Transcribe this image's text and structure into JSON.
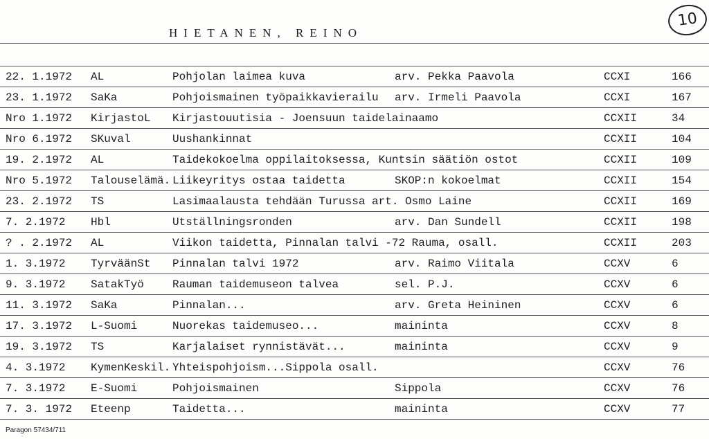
{
  "header": {
    "title": "HIETANEN, REINO",
    "card_number": "10"
  },
  "rows": [
    {
      "date": "22. 1.1972",
      "source": "AL",
      "title": "Pohjolan laimea kuva",
      "extra": "arv. Pekka Paavola",
      "volume": "CCXI",
      "page": "166"
    },
    {
      "date": "23. 1.1972",
      "source": "SaKa",
      "title": "Pohjoismainen työpaikkavierailu",
      "extra": "arv. Irmeli Paavola",
      "volume": "CCXI",
      "page": "167"
    },
    {
      "date": "Nro 1.1972",
      "source": "KirjastoL",
      "title": "Kirjastouutisia - Joensuun taidelainaamo",
      "extra": "",
      "volume": "CCXII",
      "page": "34"
    },
    {
      "date": "Nro 6.1972",
      "source": "SKuval",
      "title": "Uushankinnat",
      "extra": "",
      "volume": "CCXII",
      "page": "104"
    },
    {
      "date": "19. 2.1972",
      "source": "AL",
      "title": "Taidekokoelma oppilaitoksessa, Kuntsin säätiön ostot",
      "extra": "",
      "volume": "CCXII",
      "page": "109"
    },
    {
      "date": "Nro 5.1972",
      "source": "Talouselämä.",
      "title": "Liikeyritys ostaa taidetta",
      "extra": "SKOP:n kokoelmat",
      "volume": "CCXII",
      "page": "154"
    },
    {
      "date": "23. 2.1972",
      "source": "TS",
      "title": "Lasimaalausta tehdään Turussa art. Osmo Laine",
      "extra": "",
      "volume": "CCXII",
      "page": "169"
    },
    {
      "date": " 7. 2.1972",
      "source": "Hbl",
      "title": "Utställningsronden",
      "extra": "arv. Dan Sundell",
      "volume": "CCXII",
      "page": "198"
    },
    {
      "date": "? . 2.1972",
      "source": "AL",
      "title": "Viikon taidetta, Pinnalan talvi -72 Rauma, osall.",
      "extra": "",
      "volume": "CCXII",
      "page": "203"
    },
    {
      "date": " 1. 3.1972",
      "source": "TyrväänSt",
      "title": "Pinnalan talvi 1972",
      "extra": "arv. Raimo Viitala",
      "volume": "CCXV",
      "page": "6"
    },
    {
      "date": " 9. 3.1972",
      "source": "SatakTyö",
      "title": "Rauman taidemuseon talvea",
      "extra": "sel. P.J.",
      "volume": "CCXV",
      "page": "6"
    },
    {
      "date": "11. 3.1972",
      "source": "SaKa",
      "title": "Pinnalan...",
      "extra": "arv. Greta Heininen",
      "volume": "CCXV",
      "page": "6"
    },
    {
      "date": "17. 3.1972",
      "source": "L-Suomi",
      "title": "Nuorekas taidemuseo...",
      "extra": "mainintа",
      "volume": "CCXV",
      "page": "8"
    },
    {
      "date": "19. 3.1972",
      "source": "TS",
      "title": "Karjalaiset rynnistävät...",
      "extra": "maininta",
      "volume": "CCXV",
      "page": "9"
    },
    {
      "date": " 4. 3.1972",
      "source": "KymenKeskil.",
      "title": "Yhteispohjoism...Sippola  osall.",
      "extra": "",
      "volume": "CCXV",
      "page": "76"
    },
    {
      "date": " 7. 3.1972",
      "source": "E-Suomi",
      "title": "Pohjoismainen",
      "extra": "Sippola",
      "volume": "CCXV",
      "page": "76"
    },
    {
      "date": "7. 3. 1972",
      "source": "Eteenp",
      "title": "Taidetta...",
      "extra": "maininta",
      "volume": "CCXV",
      "page": "77"
    }
  ],
  "footer": {
    "printer": "Paragon 57434/711"
  }
}
